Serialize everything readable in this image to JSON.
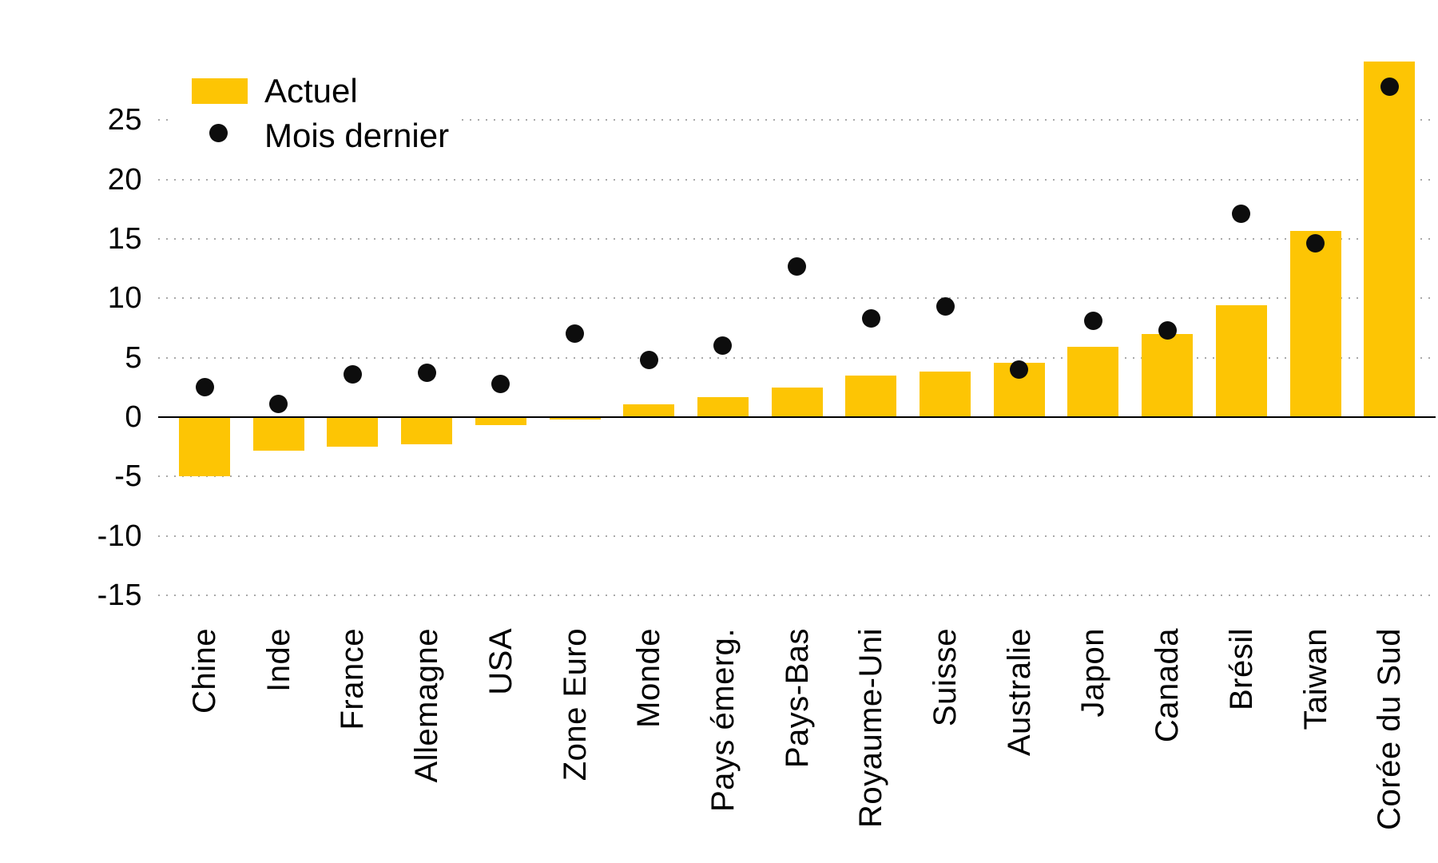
{
  "legend": {
    "items": [
      {
        "label": "Actuel",
        "marker": "square",
        "color": "#FDC504"
      },
      {
        "label": "Mois dernier",
        "marker": "dot",
        "color": "#0d0d0d"
      }
    ]
  },
  "chart_data": {
    "type": "bar",
    "categories": [
      "Chine",
      "Inde",
      "France",
      "Allemagne",
      "USA",
      "Zone Euro",
      "Monde",
      "Pays émerg.",
      "Pays-Bas",
      "Royaume-Uni",
      "Suisse",
      "Australie",
      "Japon",
      "Canada",
      "Brésil",
      "Taiwan",
      "Corée du Sud"
    ],
    "series": [
      {
        "name": "Actuel",
        "type": "bar",
        "color": "#FDC504",
        "values": [
          -5.0,
          -2.8,
          -2.5,
          -2.3,
          -0.7,
          -0.2,
          1.1,
          1.7,
          2.5,
          3.5,
          3.8,
          4.6,
          5.9,
          7.0,
          9.4,
          15.7,
          29.9
        ]
      },
      {
        "name": "Mois dernier",
        "type": "scatter",
        "color": "#0d0d0d",
        "values": [
          2.5,
          1.1,
          3.6,
          3.7,
          2.8,
          7.0,
          4.8,
          6.0,
          12.7,
          8.3,
          9.3,
          4.0,
          8.1,
          7.3,
          17.1,
          14.6,
          27.8
        ]
      }
    ],
    "title": "",
    "xlabel": "",
    "ylabel": "",
    "yticks": [
      25,
      20,
      15,
      10,
      5,
      0,
      -5,
      -10,
      -15
    ],
    "ylim": [
      -16,
      31
    ],
    "grid": "horizontal-dotted",
    "grid_color": "#a9a9a9",
    "axis_color": "#000000",
    "zero_line": true,
    "legend_position": "top-left",
    "x_tick_rotation": 90
  }
}
